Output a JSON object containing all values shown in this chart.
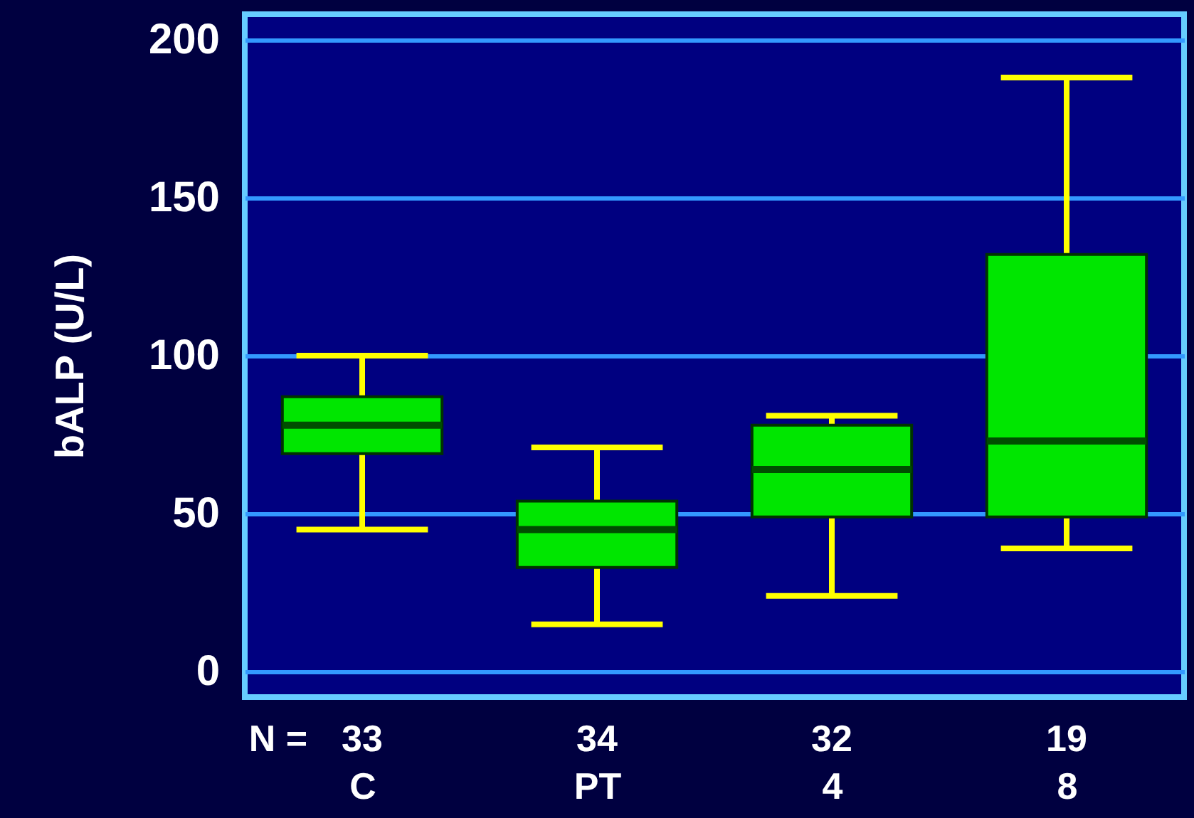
{
  "chart_data": {
    "type": "box",
    "ylabel": "bALP (U/L)",
    "categories": [
      "C",
      "PT",
      "4",
      "8"
    ],
    "series": [
      {
        "color": "#00e600",
        "boxes": [
          {
            "low": 45,
            "q1": 69,
            "median": 78,
            "q3": 87,
            "high": 100
          },
          {
            "low": 15,
            "q1": 33,
            "median": 45,
            "q3": 54,
            "high": 71
          },
          {
            "low": 24,
            "q1": 49,
            "median": 64,
            "q3": 78,
            "high": 81
          },
          {
            "low": 39,
            "q1": 49,
            "median": 73,
            "q3": 132,
            "high": 188
          }
        ]
      }
    ],
    "ylim": [
      -8,
      208
    ],
    "yticks": [
      0,
      50,
      100,
      150,
      200
    ],
    "grid": "y",
    "annotations": [
      "N =",
      "33",
      "34",
      "32",
      "19"
    ]
  }
}
